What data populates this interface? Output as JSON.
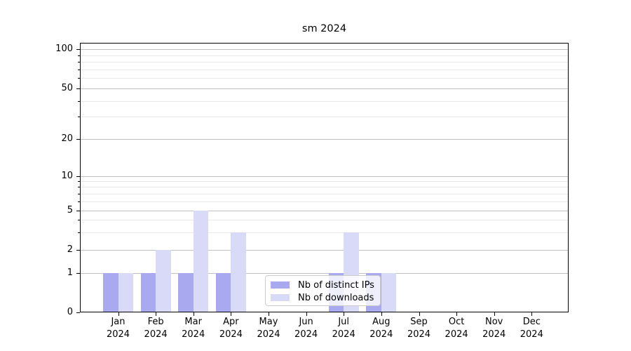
{
  "chart_data": {
    "type": "bar",
    "title": "sm 2024",
    "categories": [
      "Jan",
      "Feb",
      "Mar",
      "Apr",
      "May",
      "Jun",
      "Jul",
      "Aug",
      "Sep",
      "Oct",
      "Nov",
      "Dec"
    ],
    "x_year": "2024",
    "series": [
      {
        "name": "Nb of distinct IPs",
        "color": "#a9a9ef",
        "values": [
          1,
          1,
          1,
          1,
          0,
          0,
          1,
          1,
          0,
          0,
          0,
          0
        ]
      },
      {
        "name": "Nb of downloads",
        "color": "#d9d9f8",
        "values": [
          1,
          2,
          5,
          3,
          0,
          0,
          3,
          1,
          0,
          0,
          0,
          0
        ]
      }
    ],
    "y_axis": {
      "scale": "log-like with linear segment below 1",
      "major_ticks": [
        0,
        1,
        2,
        5,
        10,
        20,
        50,
        100
      ],
      "minor_gridlines": [
        3,
        4,
        6,
        7,
        8,
        9,
        30,
        40,
        60,
        70,
        80,
        90
      ],
      "ylim": [
        0,
        110
      ]
    },
    "legend": {
      "position": "lower center"
    },
    "grid": "on"
  },
  "colors": {
    "bar_distinct_ips": "#a9a9ef",
    "bar_downloads": "#d9d9f8",
    "grid_major": "#c0c0c0",
    "grid_minor": "#e9e9e9",
    "spine": "#000000",
    "legend_border": "#cccccc"
  }
}
